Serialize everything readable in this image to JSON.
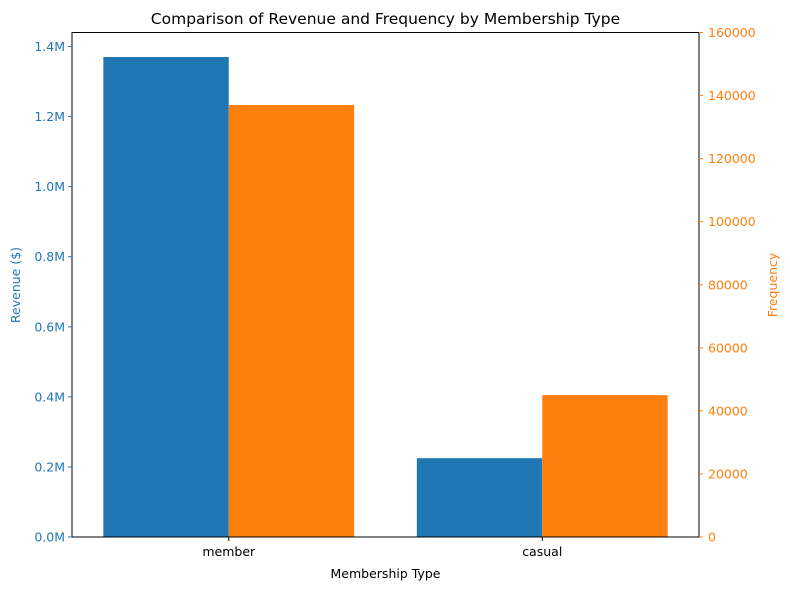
{
  "chart_data": {
    "type": "bar",
    "title": "Comparison of Revenue and Frequency by Membership Type",
    "xlabel": "Membership Type",
    "categories": [
      "member",
      "casual"
    ],
    "series": [
      {
        "axis": "left",
        "color": "#1f77b4",
        "values": [
          1370000,
          225000
        ]
      },
      {
        "axis": "right",
        "color": "#ff7f0e",
        "values": [
          137000,
          45000
        ]
      }
    ],
    "y_left": {
      "label": "Revenue ($)",
      "color": "#1f77b4",
      "ylim": [
        0,
        1440000
      ],
      "ticks": [
        0,
        200000,
        400000,
        600000,
        800000,
        1000000,
        1200000,
        1400000
      ],
      "tick_labels": [
        "0.0M",
        "0.2M",
        "0.4M",
        "0.6M",
        "0.8M",
        "1.0M",
        "1.2M",
        "1.4M"
      ]
    },
    "y_right": {
      "label": "Frequency",
      "color": "#ff7f0e",
      "ylim": [
        0,
        160000
      ],
      "ticks": [
        0,
        20000,
        40000,
        60000,
        80000,
        100000,
        120000,
        140000,
        160000
      ],
      "tick_labels": [
        "0",
        "20000",
        "40000",
        "60000",
        "80000",
        "100000",
        "120000",
        "140000",
        "160000"
      ]
    },
    "grid": false,
    "legend": "none"
  }
}
